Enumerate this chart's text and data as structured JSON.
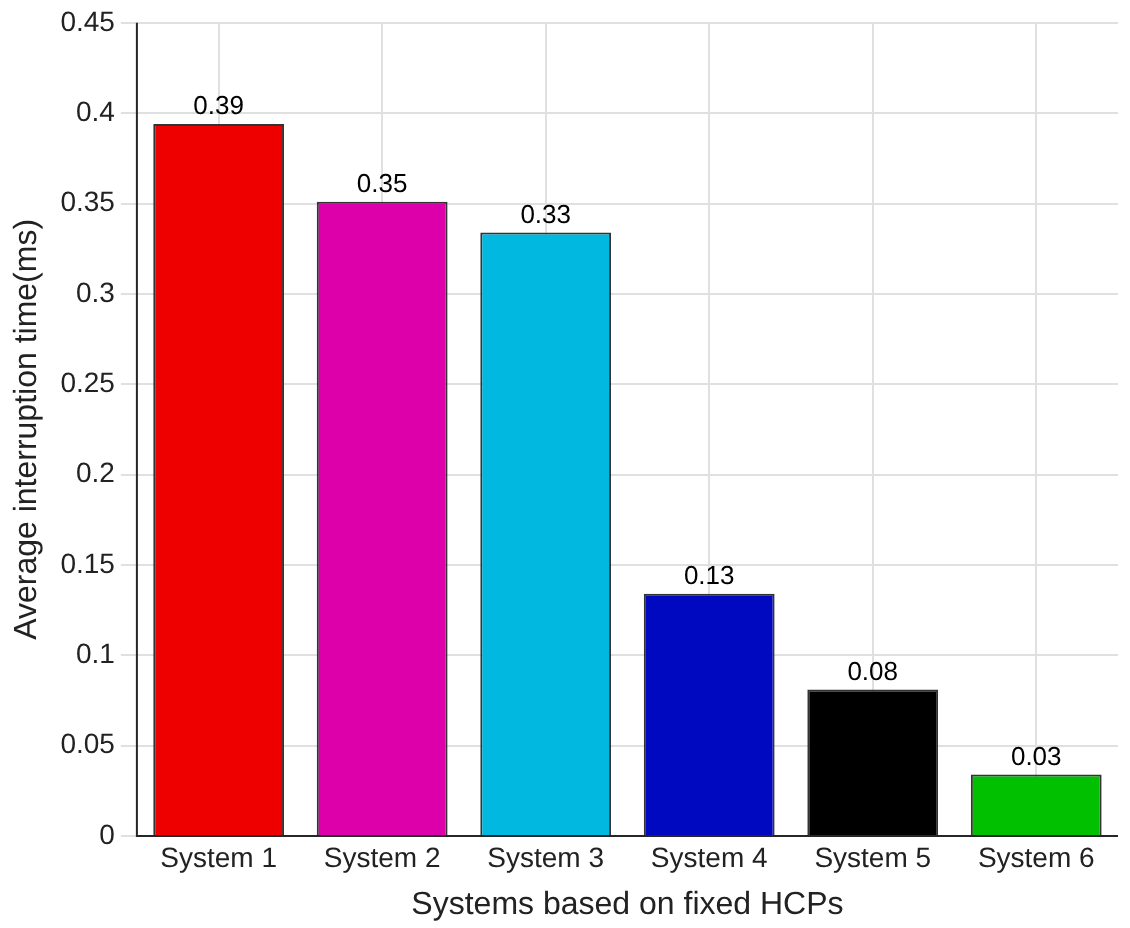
{
  "chart_data": {
    "type": "bar",
    "xlabel": "Systems based on fixed HCPs",
    "ylabel": "Average interruption time(ms)",
    "categories": [
      "System 1",
      "System 2",
      "System 3",
      "System 4",
      "System 5",
      "System 6"
    ],
    "values": [
      0.394,
      0.351,
      0.334,
      0.134,
      0.081,
      0.034
    ],
    "colors": [
      "#ee0000",
      "#dd00aa",
      "#00b8e0",
      "#0008c0",
      "#000000",
      "#00c000"
    ],
    "value_labels": [
      "0.39",
      "0.35",
      "0.33",
      "0.13",
      "0.08",
      "0.03"
    ],
    "ylim": [
      0,
      0.45
    ],
    "yticks": [
      0,
      0.05,
      0.1,
      0.15,
      0.2,
      0.25,
      0.3,
      0.35,
      0.4,
      0.45
    ],
    "grid": true
  }
}
